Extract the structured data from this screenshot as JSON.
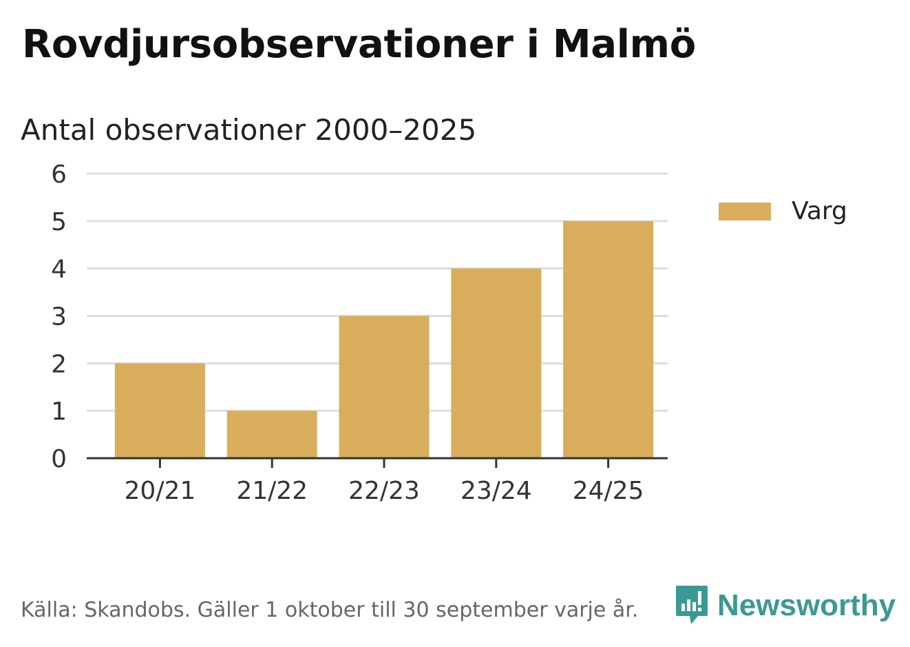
{
  "title": "Rovdjursobservationer i Malmö",
  "subtitle": "Antal observationer 2000–2025",
  "source": "Källa: Skandobs. Gäller 1 oktober till 30 september varje år.",
  "brand": {
    "name": "Newsworthy",
    "icon": "newsworthy-logo-icon",
    "color": "#3a9a93"
  },
  "chart_data": {
    "type": "bar",
    "title": "",
    "xlabel": "",
    "ylabel": "",
    "categories": [
      "20/21",
      "21/22",
      "22/23",
      "23/24",
      "24/25"
    ],
    "series": [
      {
        "name": "Varg",
        "values": [
          2,
          1,
          3,
          4,
          5
        ],
        "color": "#d9ad5b"
      }
    ],
    "ylim": [
      0,
      6
    ],
    "yticks": [
      "0",
      "1",
      "2",
      "3",
      "4",
      "5",
      "6"
    ],
    "grid": true,
    "legend": "right"
  }
}
